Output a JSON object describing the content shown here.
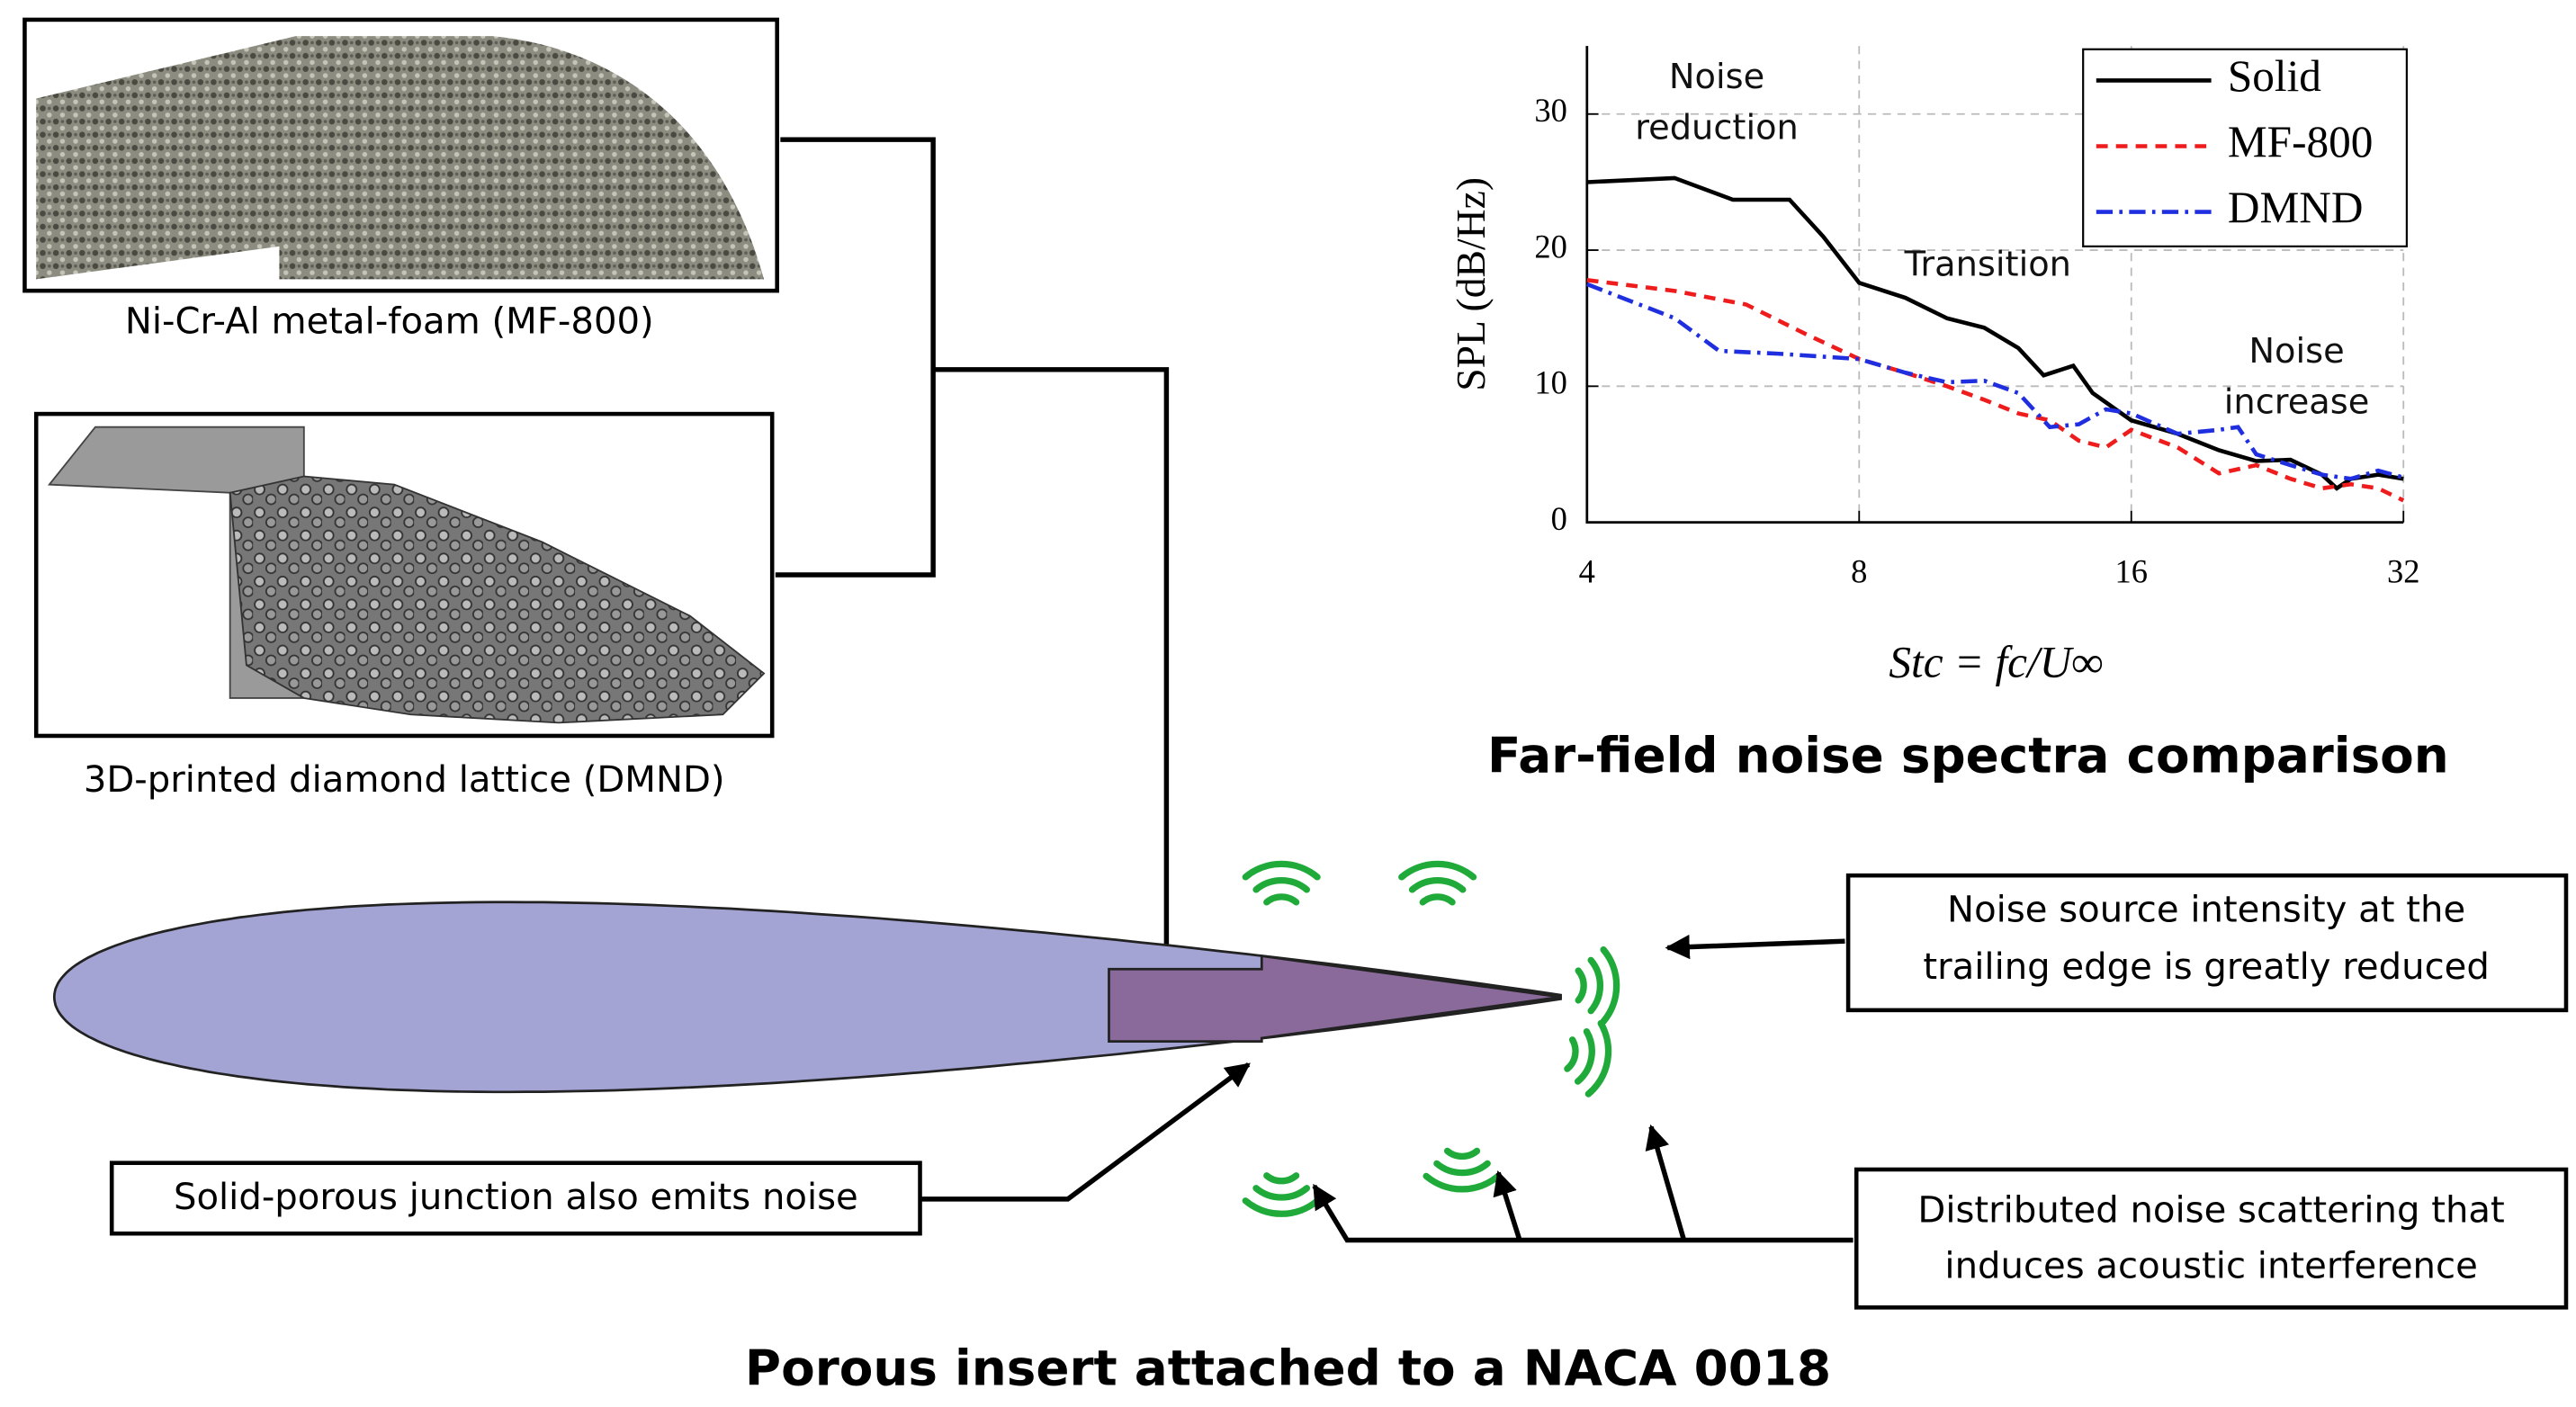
{
  "chart_data": {
    "type": "line",
    "title": "Far-field noise spectra comparison",
    "x_label": "Stc = fc/U∞",
    "y_label": "SPL (dB/Hz)",
    "xscale": "log2",
    "xlim": [
      4,
      32
    ],
    "xticks": [
      4,
      8,
      16,
      32
    ],
    "ylim": [
      0,
      35
    ],
    "yticks": [
      0,
      10,
      20,
      30
    ],
    "grid": true,
    "legend": "top-right",
    "series": [
      {
        "name": "Solid",
        "color": "#000000",
        "dash": "solid",
        "x": [
          4,
          5,
          5.8,
          6.7,
          7.3,
          8,
          9,
          10,
          11,
          12,
          12.8,
          13.8,
          14.5,
          16,
          18,
          20,
          22,
          24,
          26,
          27,
          28,
          30,
          32
        ],
        "values": [
          25,
          25.3,
          23.7,
          23.7,
          21,
          17.6,
          16.5,
          15,
          14.3,
          12.8,
          10.8,
          11.5,
          9.5,
          7.5,
          6.5,
          5.3,
          4.5,
          4.6,
          3.5,
          2.5,
          3.2,
          3.5,
          3.2
        ]
      },
      {
        "name": "MF-800",
        "color": "#ee1c1c",
        "dash": "dashed",
        "x": [
          4,
          5,
          6,
          7,
          8,
          9,
          10,
          11,
          12,
          13,
          14,
          15,
          16,
          18,
          20,
          22,
          24,
          26,
          28,
          30,
          32
        ],
        "values": [
          17.8,
          17,
          16,
          13.8,
          12,
          11,
          10,
          9,
          8,
          7.5,
          6,
          5.5,
          6.8,
          5.5,
          3.6,
          4.2,
          3.2,
          2.5,
          2.8,
          2.5,
          1.6
        ]
      },
      {
        "name": "DMND",
        "color": "#1f2fe0",
        "dash": "dashdot",
        "x": [
          4,
          5,
          5.6,
          6.5,
          8,
          9,
          10,
          11,
          12,
          13,
          14,
          15,
          16,
          18,
          20,
          21,
          22,
          24,
          26,
          28,
          30,
          32
        ],
        "values": [
          17.5,
          15,
          12.6,
          12.4,
          12,
          11,
          10.3,
          10.4,
          9.5,
          7,
          7.2,
          8.3,
          8,
          6.5,
          6.8,
          7,
          5,
          4.2,
          3.5,
          3.2,
          3.8,
          3.3
        ]
      }
    ],
    "annotations": [
      {
        "lines": [
          "Noise",
          "reduction"
        ]
      },
      {
        "lines": [
          "Transition"
        ]
      },
      {
        "lines": [
          "Noise",
          "increase"
        ]
      }
    ]
  },
  "figure": {
    "title": "Porous insert attached to a NACA 0018",
    "panels": [
      {
        "caption": "Ni-Cr-Al metal-foam (MF-800)"
      },
      {
        "caption": "3D-printed diamond lattice (DMND)"
      }
    ],
    "callouts": [
      {
        "lines": [
          "Noise source intensity at the",
          "trailing edge is greatly reduced"
        ]
      },
      {
        "lines": [
          "Solid-porous junction also emits noise"
        ]
      },
      {
        "lines": [
          "Distributed noise scattering that",
          "induces acoustic interference"
        ]
      }
    ]
  }
}
